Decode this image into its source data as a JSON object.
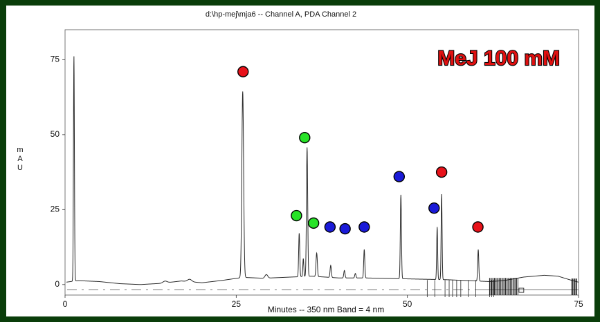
{
  "chart_data": {
    "type": "line",
    "title": "d:\\hp-mej\\mja6 -- Channel A, PDA Channel 2",
    "annotation": "MeJ 100 mM",
    "xlabel": "Minutes -- 350 nm Band = 4 nm",
    "ylabel": [
      "m",
      "A",
      "U"
    ],
    "xlim": [
      0,
      75
    ],
    "ylim": [
      -3.5,
      85
    ],
    "x_ticks": [
      0,
      25,
      50,
      75
    ],
    "y_ticks": [
      0,
      25,
      50,
      75
    ],
    "grid": false,
    "series": [
      {
        "baseline": [
          [
            0.2,
            0.8
          ],
          [
            1.4,
            1.2
          ],
          [
            2,
            1.3
          ],
          [
            5,
            1.0
          ],
          [
            8,
            0.3
          ],
          [
            11,
            0
          ],
          [
            14,
            0.4
          ],
          [
            17,
            1.2
          ],
          [
            20,
            0.6
          ],
          [
            23,
            1.4
          ],
          [
            26,
            2.4
          ],
          [
            29,
            2.1
          ],
          [
            33,
            2.5
          ],
          [
            36,
            2.8
          ],
          [
            40,
            2.2
          ],
          [
            44,
            2.2
          ],
          [
            48,
            2.0
          ],
          [
            52,
            1.8
          ],
          [
            56,
            1.6
          ],
          [
            60,
            1.2
          ],
          [
            62,
            1.0
          ],
          [
            64,
            1.3
          ],
          [
            67,
            2.5
          ],
          [
            70,
            3.1
          ],
          [
            72,
            2.8
          ],
          [
            74,
            1.4
          ],
          [
            75,
            0.8
          ]
        ],
        "peaks": [
          {
            "x": 1.3,
            "h": 78,
            "w": 0.07
          },
          {
            "x": 25.95,
            "h": 62,
            "w": 0.13
          },
          {
            "x": 34.2,
            "h": 14.5,
            "w": 0.08
          },
          {
            "x": 34.8,
            "h": 6,
            "w": 0.07
          },
          {
            "x": 35.35,
            "h": 43,
            "w": 0.09
          },
          {
            "x": 36.7,
            "h": 4.5,
            "w": 0.08
          },
          {
            "x": 36.8,
            "h": 5,
            "w": 0.08
          },
          {
            "x": 38.8,
            "h": 4,
            "w": 0.09
          },
          {
            "x": 40.8,
            "h": 2.5,
            "w": 0.09
          },
          {
            "x": 42.4,
            "h": 1.5,
            "w": 0.09
          },
          {
            "x": 43.7,
            "h": 9.5,
            "w": 0.08
          },
          {
            "x": 49.05,
            "h": 28,
            "w": 0.08
          },
          {
            "x": 54.35,
            "h": 17.5,
            "w": 0.07
          },
          {
            "x": 55.0,
            "h": 28.5,
            "w": 0.07
          },
          {
            "x": 60.35,
            "h": 10.5,
            "w": 0.08
          },
          {
            "x": 29.4,
            "h": 1.2,
            "w": 0.2
          },
          {
            "x": 18.2,
            "h": 0.8,
            "w": 0.3
          },
          {
            "x": 14.6,
            "h": 0.6,
            "w": 0.3
          }
        ]
      }
    ],
    "markers": [
      {
        "x": 26.0,
        "y": 71,
        "color": "#e8121a"
      },
      {
        "x": 35.0,
        "y": 49,
        "color": "#27e327"
      },
      {
        "x": 33.8,
        "y": 23,
        "color": "#27e327"
      },
      {
        "x": 36.3,
        "y": 20.5,
        "color": "#27e327"
      },
      {
        "x": 38.7,
        "y": 19.2,
        "color": "#1a1ad8"
      },
      {
        "x": 40.9,
        "y": 18.6,
        "color": "#1a1ad8"
      },
      {
        "x": 43.7,
        "y": 19.2,
        "color": "#1a1ad8"
      },
      {
        "x": 48.8,
        "y": 36,
        "color": "#1a1ad8"
      },
      {
        "x": 53.9,
        "y": 25.5,
        "color": "#1a1ad8"
      },
      {
        "x": 55.0,
        "y": 37.5,
        "color": "#e8121a"
      },
      {
        "x": 60.3,
        "y": 19.2,
        "color": "#e8121a"
      }
    ]
  },
  "colors": {
    "background": "#0a3d0a",
    "panel": "#ffffff",
    "trace": "#2a2a2a",
    "red_marker": "#e8121a",
    "green_marker": "#27e327",
    "blue_marker": "#1a1ad8"
  }
}
